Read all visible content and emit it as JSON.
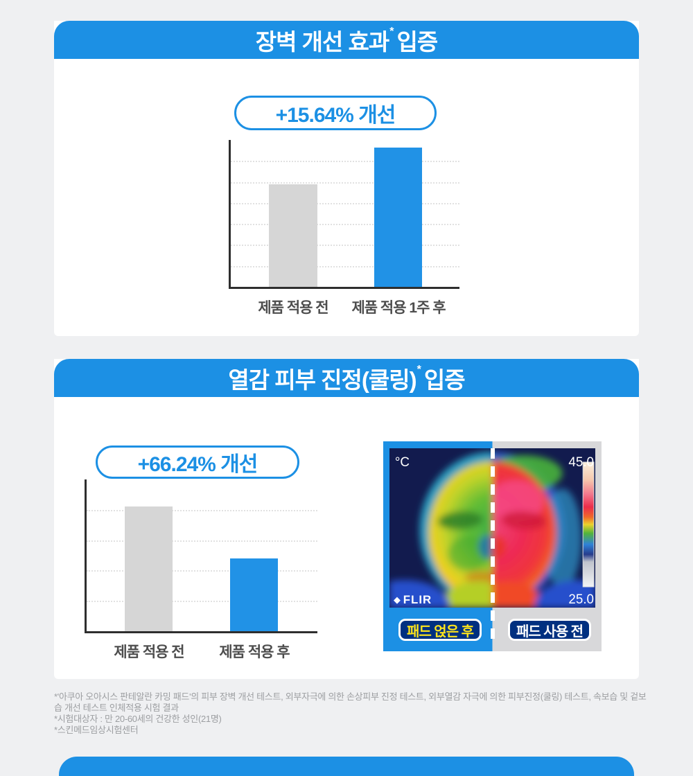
{
  "page": {
    "background": "#eff0f2",
    "accent_blue": "#1c90e4",
    "navy": "#003080",
    "yellow": "#ffe41c",
    "bar_gray": "#d6d6d6",
    "bar_blue": "#2192e6"
  },
  "section_barrier": {
    "header": {
      "title_main": "장벽 개선 효과",
      "title_sup": "*",
      "title_tail": "입증"
    },
    "badge": "+15.64% 개선"
  },
  "section_cooling": {
    "header": {
      "title_main": "열감 피부 진정(쿨링)",
      "title_sup": "*",
      "title_tail": "입증"
    },
    "badge": "+66.24% 개선",
    "thermal": {
      "unit": "°C",
      "temp_max": "45.0",
      "temp_min": "25.0",
      "logo_mark": "◆",
      "logo": "FLIR",
      "label_after": "패드 얹은 후",
      "label_before": "패드 사용 전"
    }
  },
  "chart_data": [
    {
      "type": "bar",
      "title": "장벽 개선 효과 입증",
      "improvement_badge": "+15.64% 개선",
      "categories": [
        "제품 적용 전",
        "제품 적용 1주 후"
      ],
      "values": [
        70,
        95
      ],
      "series_colors": [
        "#d6d6d6",
        "#2192e6"
      ],
      "ylim": [
        0,
        100
      ],
      "grid": true,
      "unit": "relative (no axis tick labels shown)"
    },
    {
      "type": "bar",
      "title": "열감 피부 진정(쿨링) 입증",
      "improvement_badge": "+66.24% 개선",
      "categories": [
        "제품 적용 전",
        "제품 적용 후"
      ],
      "values": [
        82,
        48
      ],
      "series_colors": [
        "#d6d6d6",
        "#2192e6"
      ],
      "ylim": [
        0,
        100
      ],
      "grid": true,
      "unit": "relative (no axis tick labels shown)"
    }
  ],
  "footnote": {
    "lines": [
      "*'아쿠아 오아시스 판테알란 카밍 패드'의 피부 장벽 개선 테스트, 외부자극에 의한 손상피부 진정 테스트, 외부열감 자극에 의한 피부진정(쿨링) 테스트, 속보습 및 겉보습 개선 테스트 인체적용 시험 결과",
      "*시험대상자 : 만 20-60세의 건강한 성인(21명)",
      "*스킨메드임상시험센터"
    ]
  }
}
